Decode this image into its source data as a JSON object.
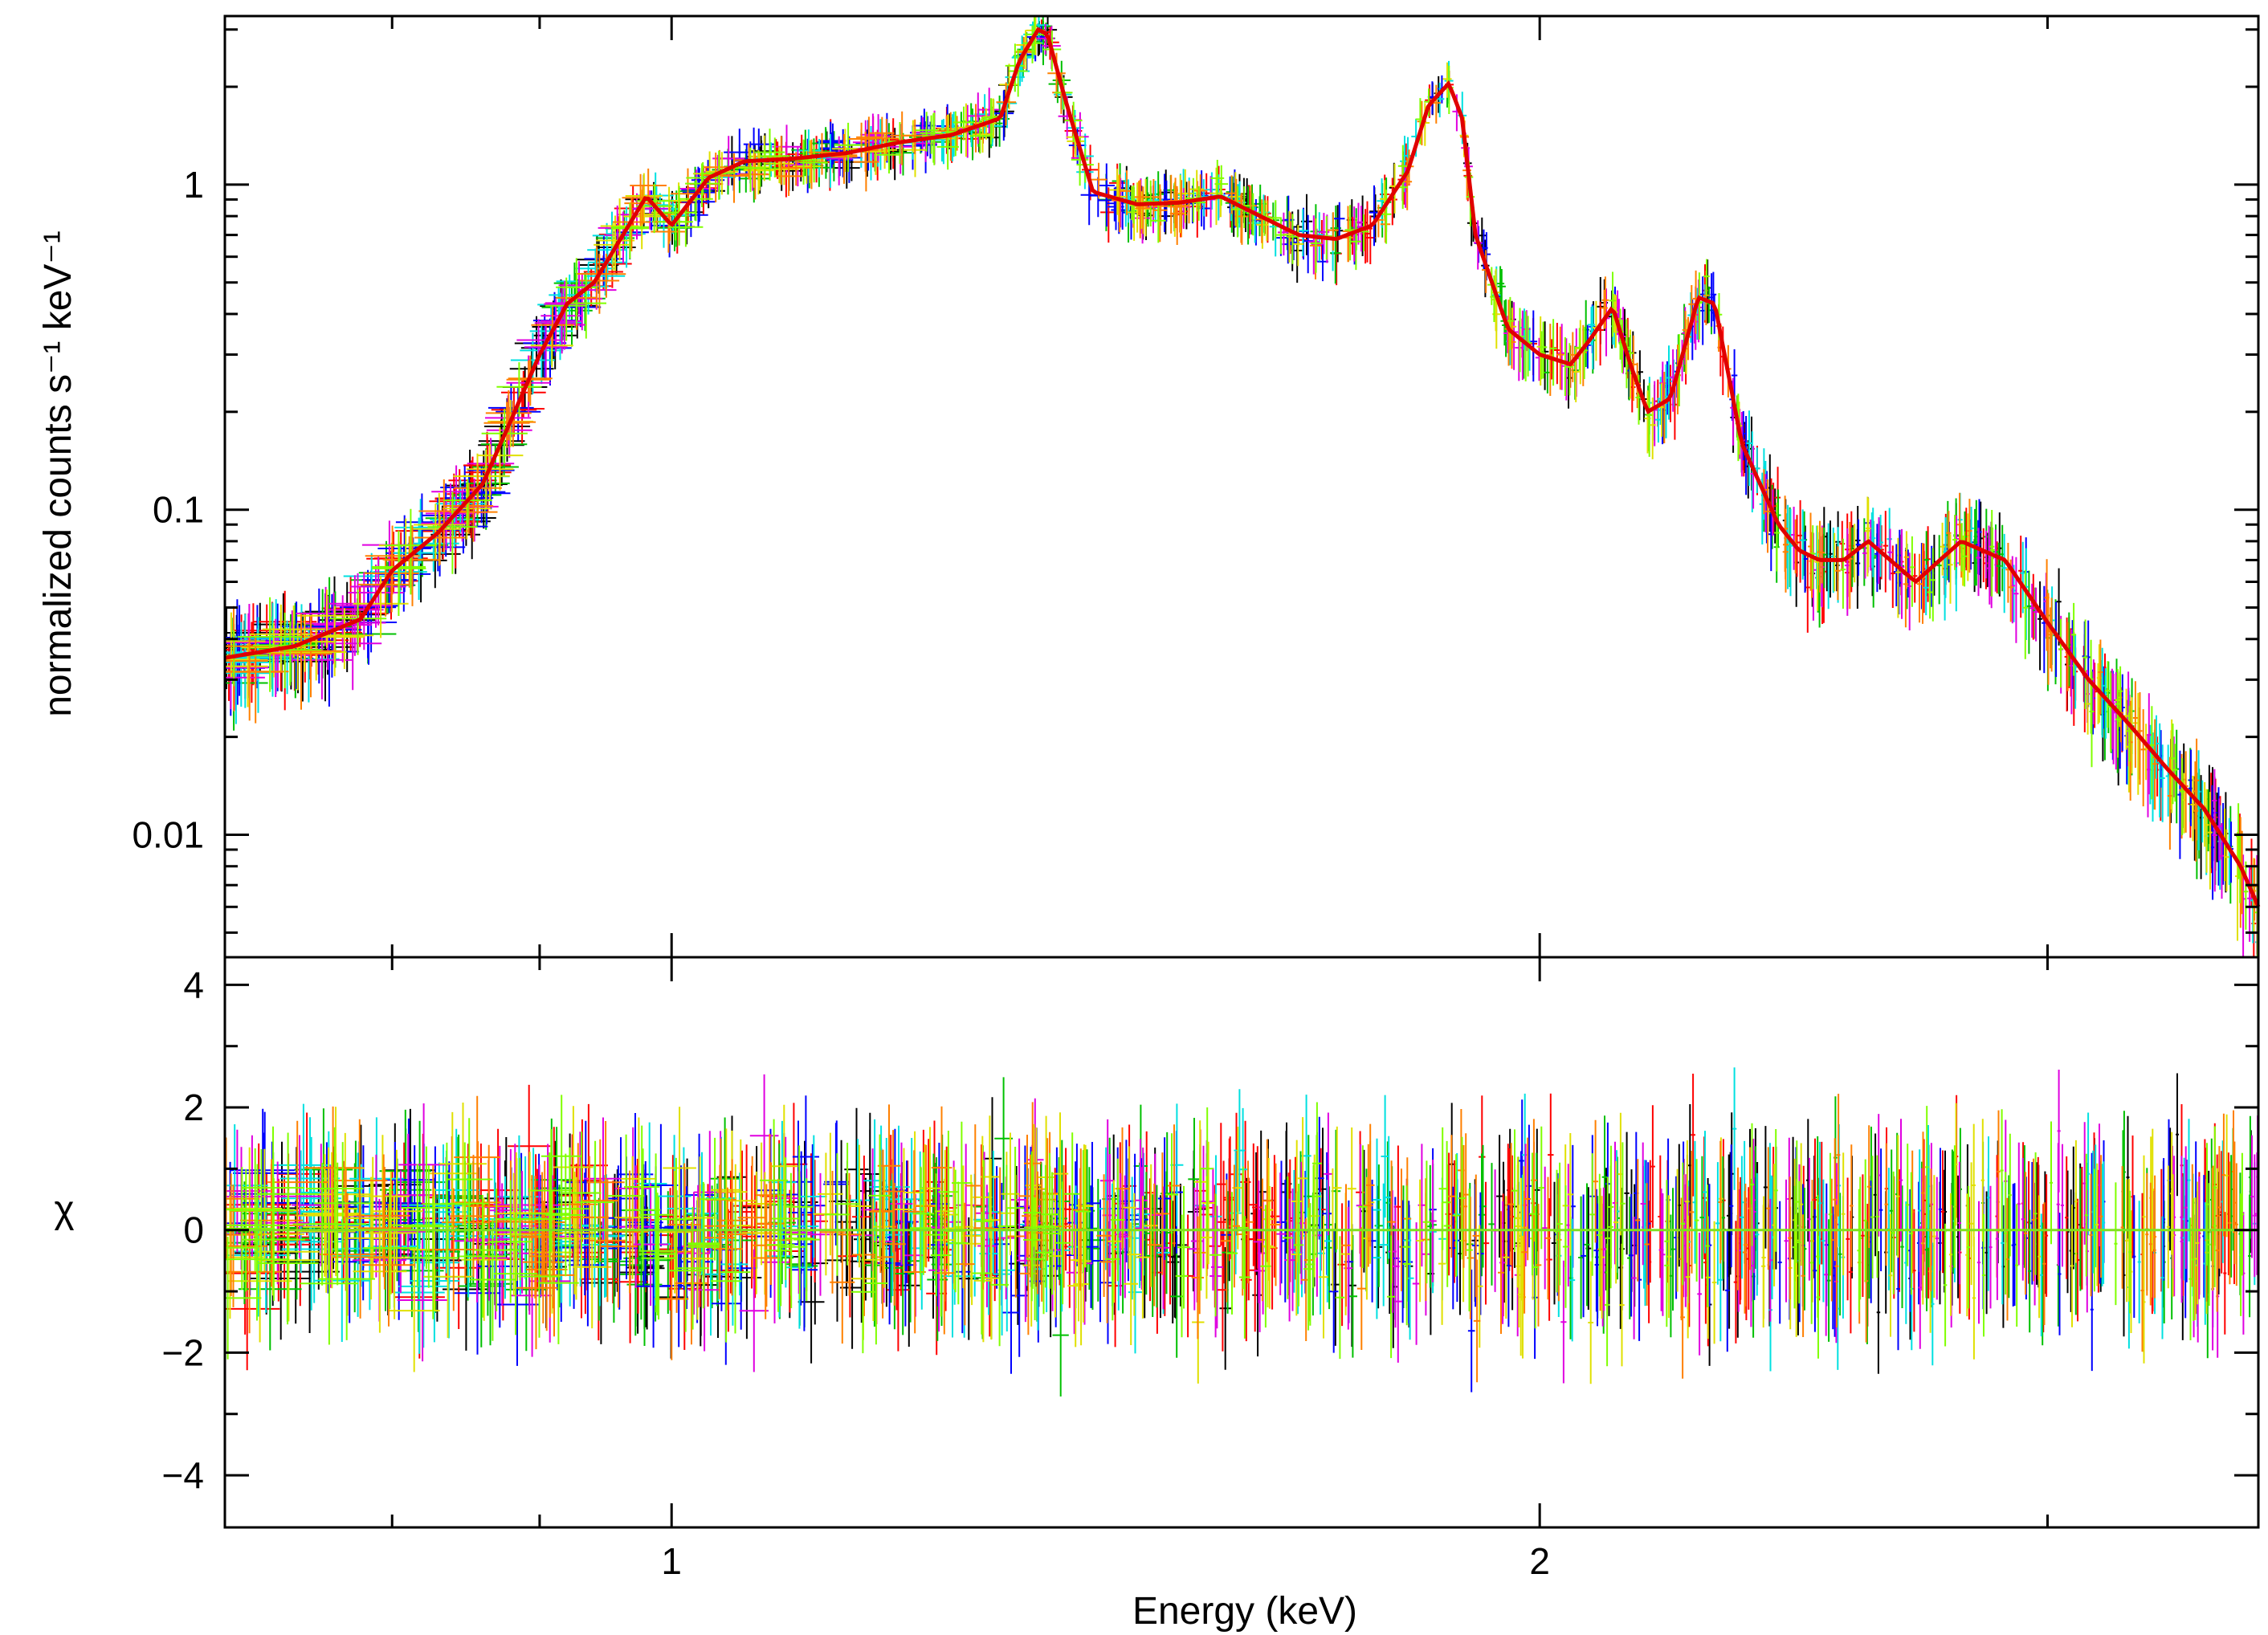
{
  "chart_data": [
    {
      "type": "line",
      "panel": "spectrum",
      "title": "",
      "xlabel": "",
      "ylabel": "normalized counts s⁻¹ keV⁻¹",
      "xscale": "log",
      "yscale": "log",
      "xlim": [
        0.7,
        3.55
      ],
      "ylim": [
        0.0042,
        3.3
      ],
      "yticks": [
        {
          "value": 1,
          "label": "1"
        },
        {
          "value": 0.1,
          "label": "0.1"
        },
        {
          "value": 0.01,
          "label": "0.01"
        }
      ],
      "grid": false,
      "legend": "none",
      "series_colors": [
        "#000000",
        "#ff0000",
        "#00c000",
        "#0000ff",
        "#00e0e0",
        "#e000e0",
        "#e0e000",
        "#ff8000",
        "#80ff00"
      ],
      "model_color": "#e00000",
      "series": [
        {
          "x": [
            0.7,
            0.74,
            0.78,
            0.8,
            0.83,
            0.86,
            0.88,
            0.9,
            0.92,
            0.94,
            0.96,
            0.98,
            1.0,
            1.03,
            1.06,
            1.1,
            1.15,
            1.2,
            1.25,
            1.3,
            1.32,
            1.34,
            1.35,
            1.37,
            1.4,
            1.45,
            1.5,
            1.55,
            1.6,
            1.65,
            1.7,
            1.75,
            1.8,
            1.83,
            1.86,
            1.88,
            1.9,
            1.95,
            2.0,
            2.05,
            2.08,
            2.12,
            2.15,
            2.18,
            2.22,
            2.27,
            2.3,
            2.35,
            2.42,
            2.46,
            2.5,
            2.55,
            2.6,
            2.7,
            2.8,
            2.9,
            3.0,
            3.1,
            3.2,
            3.3,
            3.4,
            3.5,
            3.55
          ],
          "y": [
            0.035,
            0.038,
            0.046,
            0.065,
            0.085,
            0.12,
            0.19,
            0.3,
            0.43,
            0.5,
            0.68,
            0.92,
            0.75,
            1.05,
            1.18,
            1.2,
            1.25,
            1.35,
            1.42,
            1.6,
            2.4,
            3.0,
            2.9,
            1.8,
            0.95,
            0.87,
            0.88,
            0.92,
            0.8,
            0.7,
            0.68,
            0.75,
            1.1,
            1.75,
            2.05,
            1.6,
            0.7,
            0.36,
            0.3,
            0.28,
            0.33,
            0.42,
            0.28,
            0.2,
            0.22,
            0.45,
            0.43,
            0.16,
            0.09,
            0.075,
            0.07,
            0.07,
            0.08,
            0.06,
            0.08,
            0.07,
            0.045,
            0.03,
            0.022,
            0.016,
            0.012,
            0.008,
            0.006
          ]
        }
      ]
    },
    {
      "type": "scatter",
      "panel": "residuals",
      "title": "",
      "xlabel": "Energy (keV)",
      "ylabel": "χ",
      "xscale": "log",
      "yscale": "linear",
      "xlim": [
        0.7,
        3.55
      ],
      "ylim": [
        -4.85,
        4.45
      ],
      "xticks": [
        {
          "value": 1,
          "label": "1"
        },
        {
          "value": 2,
          "label": "2"
        }
      ],
      "yticks": [
        {
          "value": 4,
          "label": "4"
        },
        {
          "value": 2,
          "label": "2"
        },
        {
          "value": 0,
          "label": "0"
        },
        {
          "value": -2,
          "label": "−2"
        },
        {
          "value": -4,
          "label": "−4"
        }
      ],
      "zero_line_color": "#80e020",
      "grid": false,
      "legend": "none",
      "series": [
        {
          "description_of_spread": "residuals scattered about zero",
          "x": [
            0.7,
            3.55
          ],
          "y": [
            0,
            0
          ]
        }
      ]
    }
  ]
}
